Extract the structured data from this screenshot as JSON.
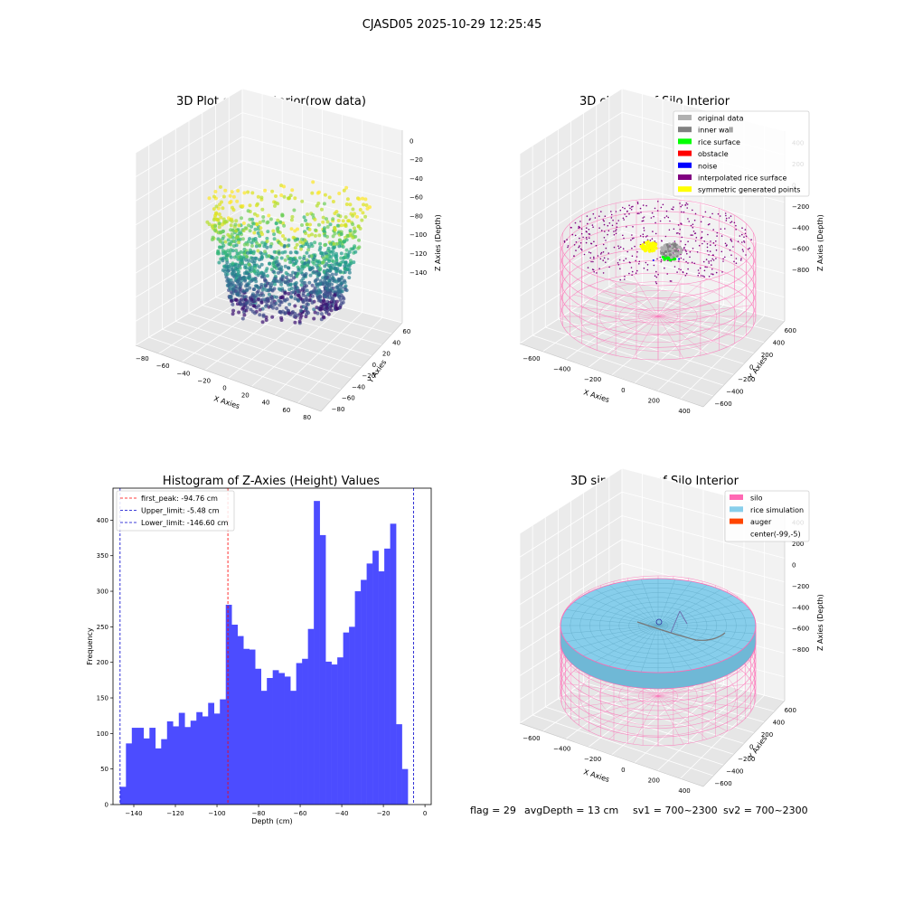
{
  "figure": {
    "title": "CJASD05 2025-10-29 12:25:45",
    "status_line": {
      "flag": "flag = 29",
      "avg_depth": "avgDepth = 13 cm",
      "sv1": "sv1 = 700~2300",
      "sv2": "sv2 = 700~2300"
    }
  },
  "colors": {
    "hist_bar": "#4c4cff",
    "first_peak": "#ff0000",
    "limit_line": "#0000cc",
    "silo_pink": "#ff69b4",
    "rice_blue": "#87ceeb",
    "auger_orange": "#ff4500"
  },
  "chart_data": [
    {
      "type": "scatter3d",
      "title": "3D Plot of Silo Interior(row data)",
      "xlabel": "X Axies",
      "ylabel": "Y Axies",
      "zlabel": "Z Axies (Depth)",
      "x_ticks": [
        "−80",
        "−60",
        "−40",
        "−20",
        "0",
        "20",
        "40",
        "60",
        "80"
      ],
      "y_ticks": [
        "−80",
        "−60",
        "−40",
        "−20",
        "0",
        "20",
        "40",
        "60"
      ],
      "z_ticks": [
        "0",
        "−20",
        "−40",
        "−60",
        "−80",
        "−100",
        "−120",
        "−140"
      ],
      "xlim": [
        -90,
        90
      ],
      "ylim": [
        -90,
        70
      ],
      "zlim": [
        -150,
        5
      ],
      "colormap": "viridis"
    },
    {
      "type": "scatter3d",
      "title": "3D classify of Silo Interior",
      "xlabel": "X Axies",
      "ylabel": "Y Axies",
      "zlabel": "Z Axies (Depth)",
      "x_ticks": [
        "−600",
        "−400",
        "−200",
        "0",
        "200",
        "400"
      ],
      "y_ticks": [
        "−600",
        "−400",
        "−200",
        "0",
        "200",
        "400",
        "600"
      ],
      "z_ticks": [
        "400",
        "200",
        "0",
        "−200",
        "−400",
        "−600",
        "−800"
      ],
      "legend": [
        {
          "label": "original data",
          "color": "#b0b0b0"
        },
        {
          "label": "inner wall",
          "color": "#808080"
        },
        {
          "label": "rice surface",
          "color": "#00ff00"
        },
        {
          "label": "obstacle",
          "color": "#ff0000"
        },
        {
          "label": "noise",
          "color": "#0000ff"
        },
        {
          "label": "interpolated rice surface",
          "color": "#800080"
        },
        {
          "label": "symmetric generated points",
          "color": "#ffff00"
        }
      ],
      "legend_position": "top-right"
    },
    {
      "type": "bar",
      "title": "Histogram of Z-Axies (Height) Values",
      "xlabel": "Depth (cm)",
      "ylabel": "Frequency",
      "xlim": [
        -150,
        3
      ],
      "ylim": [
        0,
        445
      ],
      "x_ticks": [
        "−140",
        "−120",
        "−100",
        "−80",
        "−60",
        "−40",
        "−20",
        "0"
      ],
      "y_ticks": [
        "0",
        "50",
        "100",
        "150",
        "200",
        "250",
        "300",
        "350",
        "400"
      ],
      "bin_start": -146.6,
      "bin_width": 2.823,
      "values": [
        25,
        86,
        108,
        108,
        93,
        108,
        79,
        92,
        117,
        110,
        129,
        109,
        118,
        130,
        124,
        143,
        128,
        148,
        281,
        253,
        237,
        219,
        218,
        191,
        160,
        178,
        189,
        185,
        180,
        160,
        199,
        205,
        247,
        427,
        379,
        201,
        197,
        207,
        242,
        250,
        300,
        316,
        339,
        357,
        328,
        360,
        395,
        113,
        50
      ],
      "vlines": [
        {
          "label": "first_peak: -94.76 cm",
          "value": -94.76,
          "color": "#ff0000"
        },
        {
          "label": "Upper_limit: -5.48 cm",
          "value": -5.48,
          "color": "#0000cc"
        },
        {
          "label": "Lower_limit: -146.60 cm",
          "value": -146.6,
          "color": "#0000cc"
        }
      ],
      "legend_position": "top-left"
    },
    {
      "type": "surface3d",
      "title": "3D simulation of Silo Interior",
      "xlabel": "X Axies",
      "ylabel": "Y Axies",
      "zlabel": "Z Axies (Depth)",
      "x_ticks": [
        "−600",
        "−400",
        "−200",
        "0",
        "200",
        "400"
      ],
      "y_ticks": [
        "−600",
        "−400",
        "−200",
        "0",
        "200",
        "400",
        "600"
      ],
      "z_ticks": [
        "400",
        "200",
        "0",
        "−200",
        "−400",
        "−600",
        "−800"
      ],
      "legend": [
        {
          "label": "silo",
          "color": "#ff69b4"
        },
        {
          "label": "rice simulation",
          "color": "#87ceeb"
        },
        {
          "label": "auger",
          "color": "#ff4500"
        },
        {
          "label": "center(-99,-5)",
          "color": ""
        }
      ],
      "legend_position": "top-right"
    }
  ]
}
